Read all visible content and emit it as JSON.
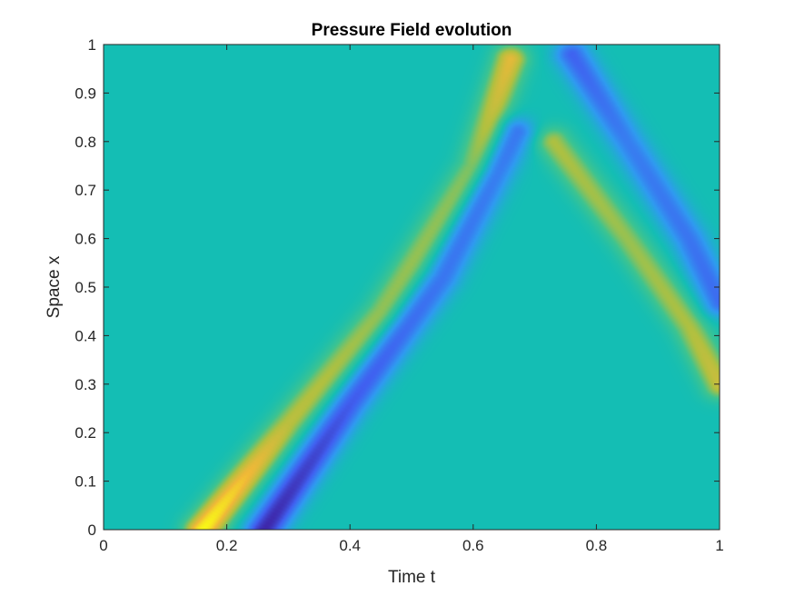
{
  "chart_data": {
    "type": "heatmap",
    "title": "Pressure Field evolution",
    "xlabel": "Time t",
    "ylabel": "Space x",
    "xlim": [
      0,
      1
    ],
    "ylim": [
      0,
      1
    ],
    "xticks": [
      "0",
      "0.2",
      "0.4",
      "0.6",
      "0.8",
      "1"
    ],
    "yticks": [
      "0",
      "0.1",
      "0.2",
      "0.3",
      "0.4",
      "0.5",
      "0.6",
      "0.7",
      "0.8",
      "0.9",
      "1"
    ],
    "colormap": [
      "#3e26a8",
      "#4060f0",
      "#2f9bf0",
      "#14beb4",
      "#3ec490",
      "#b0c040",
      "#f0b838",
      "#f9fb15"
    ],
    "background_value": 0,
    "series": [
      {
        "kind": "positive-pulse",
        "path_t": [
          0.16,
          0.3,
          0.45,
          0.6,
          0.66
        ],
        "path_x": [
          0.0,
          0.22,
          0.45,
          0.75,
          0.97
        ],
        "amplitude": [
          1.0,
          0.55,
          0.45,
          0.45,
          0.7
        ]
      },
      {
        "kind": "negative-pulse",
        "path_t": [
          0.26,
          0.4,
          0.55,
          0.67
        ],
        "path_x": [
          0.0,
          0.26,
          0.52,
          0.82
        ],
        "amplitude": [
          -1.0,
          -0.7,
          -0.55,
          -0.55
        ]
      },
      {
        "kind": "reflected-negative-pulse",
        "path_t": [
          0.76,
          0.85,
          0.95,
          1.0
        ],
        "path_x": [
          0.98,
          0.8,
          0.6,
          0.47
        ],
        "amplitude": [
          -0.65,
          -0.5,
          -0.55,
          -0.6
        ]
      },
      {
        "kind": "reflected-positive-pulse",
        "path_t": [
          0.73,
          0.85,
          0.95,
          1.0
        ],
        "path_x": [
          0.8,
          0.6,
          0.42,
          0.3
        ],
        "amplitude": [
          0.5,
          0.45,
          0.5,
          0.6
        ]
      }
    ]
  }
}
